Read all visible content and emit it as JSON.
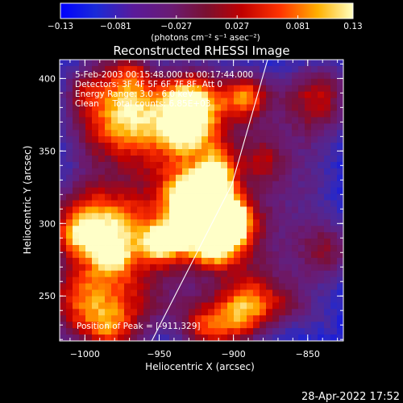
{
  "chart_data": {
    "type": "heatmap",
    "title": "Reconstructed RHESSI Image",
    "info_lines": [
      "5-Feb-2003 00:15:48.000 to 00:17:44.000",
      "Detectors: 3F 4F 5F 6F 7F 8F, Att 0",
      "Energy Range: 3.0 - 6.0 keV",
      "Clean     Total counts: 6.85E+03"
    ],
    "peak_label": "Position of Peak = [-911,329]",
    "peak": {
      "x": -911,
      "y": 329
    },
    "xlabel": "Heliocentric X (arcsec)",
    "ylabel": "Heliocentric Y (arcsec)",
    "xlim": [
      -1017,
      -826
    ],
    "ylim": [
      219,
      413
    ],
    "x_ticks": [
      -1000,
      -950,
      -900,
      -850
    ],
    "x_tick_labels": [
      "−1000",
      "−950",
      "−900",
      "−850"
    ],
    "y_ticks": [
      250,
      300,
      350,
      400
    ],
    "y_tick_labels": [
      "250",
      "300",
      "350",
      "400"
    ],
    "limb_line": [
      [
        -955,
        219
      ],
      [
        -901,
        327
      ],
      [
        -877,
        413
      ]
    ],
    "colorbar": {
      "range": [
        -0.13,
        0.13
      ],
      "ticks": [
        -0.13,
        -0.081,
        -0.027,
        0.027,
        0.081,
        0.13
      ],
      "tick_labels": [
        "−0.13",
        "−0.081",
        "−0.027",
        "0.027",
        "0.081",
        "0.13"
      ],
      "unit_label": "(photons cm⁻² s⁻¹ asec⁻²)"
    },
    "grid": false
  },
  "footer": {
    "timestamp": "28-Apr-2022 17:52"
  }
}
